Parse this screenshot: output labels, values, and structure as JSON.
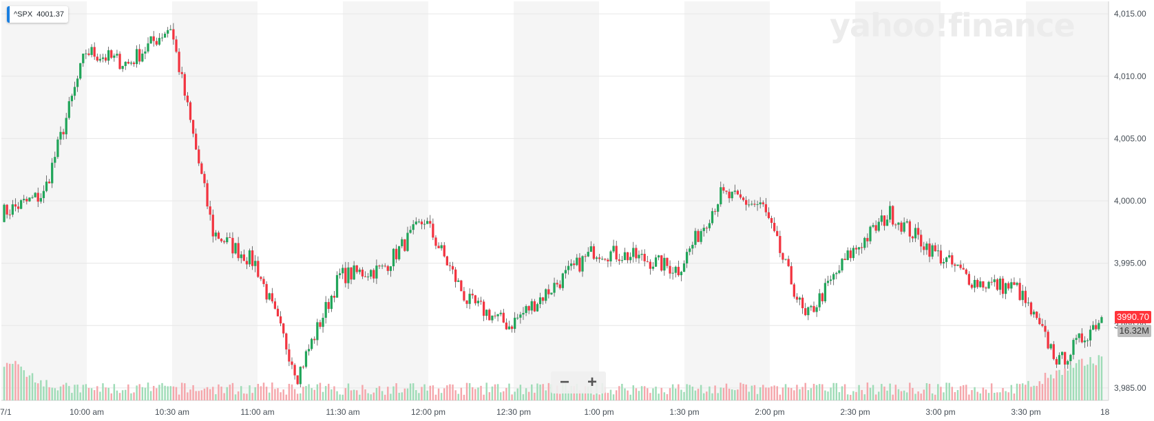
{
  "symbol_badge": {
    "ticker": "^SPX",
    "price": "4001.37",
    "accent": "#1a7fe0"
  },
  "watermark": "yahoo!finance",
  "zoom": {
    "minus_label": "−",
    "plus_label": "+"
  },
  "tags": {
    "last_price": "3990.70",
    "last_price_color": "#ff333a",
    "volume": "16.32M"
  },
  "chart_data": {
    "type": "candlestick",
    "ylim": [
      3984,
      4016
    ],
    "y_ticks": [
      {
        "value": 4015,
        "label": "4,015.00"
      },
      {
        "value": 4010,
        "label": "4,010.00"
      },
      {
        "value": 4005,
        "label": "4,005.00"
      },
      {
        "value": 4000,
        "label": "4,000.00"
      },
      {
        "value": 3995,
        "label": "3,995.00"
      },
      {
        "value": 3990,
        "label": "3,990.00"
      },
      {
        "value": 3985,
        "label": "3,985.00"
      }
    ],
    "x_ticks": [
      "10:00 am",
      "10:30 am",
      "11:00 am",
      "11:30 am",
      "12:00 pm",
      "12:30 pm",
      "1:00 pm",
      "1:30 pm",
      "2:00 pm",
      "2:30 pm",
      "3:00 pm",
      "3:30 pm"
    ],
    "x_edge_left": "7/1",
    "x_edge_right": "18",
    "up_color": "#21a55a",
    "down_color": "#f23440",
    "grid": true,
    "shaded_bands": true,
    "session_closes_estimated": [
      {
        "time": "9:30 am",
        "close": 3999.0
      },
      {
        "time": "9:45 am",
        "close": 4000.5
      },
      {
        "time": "10:00 am",
        "close": 4012.0
      },
      {
        "time": "10:15 am",
        "close": 4011.0
      },
      {
        "time": "10:30 am",
        "close": 4014.0
      },
      {
        "time": "10:45 am",
        "close": 3997.5
      },
      {
        "time": "11:00 am",
        "close": 3995.0
      },
      {
        "time": "11:15 am",
        "close": 3986.0
      },
      {
        "time": "11:30 am",
        "close": 3994.0
      },
      {
        "time": "11:45 am",
        "close": 3994.5
      },
      {
        "time": "12:00 pm",
        "close": 3998.5
      },
      {
        "time": "12:15 pm",
        "close": 3992.0
      },
      {
        "time": "12:30 pm",
        "close": 3990.0
      },
      {
        "time": "12:45 pm",
        "close": 3993.0
      },
      {
        "time": "1:00 pm",
        "close": 3996.0
      },
      {
        "time": "1:15 pm",
        "close": 3995.5
      },
      {
        "time": "1:30 pm",
        "close": 3994.5
      },
      {
        "time": "1:45 pm",
        "close": 4000.5
      },
      {
        "time": "2:00 pm",
        "close": 3999.5
      },
      {
        "time": "2:15 pm",
        "close": 3990.5
      },
      {
        "time": "2:30 pm",
        "close": 3995.5
      },
      {
        "time": "2:45 pm",
        "close": 3999.0
      },
      {
        "time": "3:00 pm",
        "close": 3996.0
      },
      {
        "time": "3:15 pm",
        "close": 3993.5
      },
      {
        "time": "3:30 pm",
        "close": 3993.0
      },
      {
        "time": "3:45 pm",
        "close": 3987.0
      },
      {
        "time": "4:00 pm",
        "close": 3990.7
      }
    ],
    "last_volume": "16.32M"
  }
}
